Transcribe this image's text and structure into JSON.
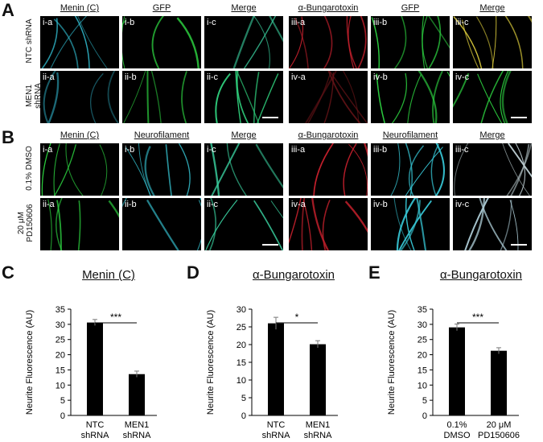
{
  "panel_letters": [
    "A",
    "B",
    "C",
    "D",
    "E"
  ],
  "section_A": {
    "column_titles": [
      "Menin (C)",
      "GFP",
      "Merge",
      "α-Bungarotoxin",
      "GFP",
      "Merge"
    ],
    "row_labels": [
      "NTC shRNA",
      "MEN1 shRNA"
    ],
    "tiles": [
      [
        "i-a",
        "i-b",
        "i-c",
        "iii-a",
        "iii-b",
        "iii-c"
      ],
      [
        "ii-a",
        "ii-b",
        "ii-c",
        "iv-a",
        "iv-b",
        "iv-c"
      ]
    ],
    "tile_colors": [
      [
        "#2fb6c9",
        "#2ccf3f",
        "#3ad1a0",
        "#c4202c",
        "#2ccf3f",
        "#d8c83a"
      ],
      [
        "#1e6f7d",
        "#2ccf3f",
        "#2fcf7c",
        "#6a1418",
        "#2ccf3f",
        "#2ccf3f"
      ]
    ]
  },
  "section_B": {
    "column_titles": [
      "Menin (C)",
      "Neurofilament",
      "Merge",
      "α-Bungarotoxin",
      "Neurofilament",
      "Merge"
    ],
    "row_labels": [
      "0.1% DMSO",
      "20 μM PD150606"
    ],
    "tiles": [
      [
        "i-a",
        "i-b",
        "i-c",
        "iii-a",
        "iii-b",
        "iii-c"
      ],
      [
        "ii-a",
        "ii-b",
        "ii-c",
        "iv-a",
        "iv-b",
        "iv-c"
      ]
    ],
    "tile_colors": [
      [
        "#2ccf3f",
        "#37c7d6",
        "#3ad1a0",
        "#c4202c",
        "#37c7d6",
        "#b8c8cc"
      ],
      [
        "#2ccf3f",
        "#37c7d6",
        "#3ad1a0",
        "#c4202c",
        "#37c7d6",
        "#a8c6cf"
      ]
    ]
  },
  "chart_data": [
    {
      "type": "bar",
      "title": "Menin (C)",
      "ylabel": "Neurite Fluorescence (AU)",
      "categories": [
        "NTC shRNA",
        "MEN1 shRNA"
      ],
      "category_lines": [
        [
          "NTC",
          "shRNA"
        ],
        [
          "MEN1",
          "shRNA"
        ]
      ],
      "values": [
        30.6,
        13.6
      ],
      "errors": [
        1.0,
        1.0
      ],
      "ylim": [
        0,
        35
      ],
      "yticks": [
        "0",
        "5",
        "10",
        "15",
        "20",
        "25",
        "30",
        "35"
      ],
      "significance": "***",
      "bar_color": "#000000"
    },
    {
      "type": "bar",
      "title": "α-Bungarotoxin",
      "ylabel": "Neurite Fluorescence (AU)",
      "categories": [
        "NTC shRNA",
        "MEN1 shRNA"
      ],
      "category_lines": [
        [
          "NTC",
          "shRNA"
        ],
        [
          "MEN1",
          "shRNA"
        ]
      ],
      "values": [
        26.0,
        20.1
      ],
      "errors": [
        1.7,
        1.0
      ],
      "ylim": [
        0,
        30
      ],
      "yticks": [
        "0",
        "5",
        "10",
        "15",
        "20",
        "25",
        "30"
      ],
      "significance": "*",
      "bar_color": "#000000"
    },
    {
      "type": "bar",
      "title": "α-Bungarotoxin",
      "ylabel": "Neurite Fluorescence (AU)",
      "categories": [
        "0.1% DMSO",
        "20 μM PD150606"
      ],
      "category_lines": [
        [
          "0.1%",
          "DMSO"
        ],
        [
          "20 μM",
          "PD150606"
        ]
      ],
      "values": [
        29.0,
        21.3
      ],
      "errors": [
        1.1,
        1.0
      ],
      "ylim": [
        0,
        35
      ],
      "yticks": [
        "0",
        "5",
        "10",
        "15",
        "20",
        "25",
        "30",
        "35"
      ],
      "significance": "***",
      "bar_color": "#000000"
    }
  ]
}
